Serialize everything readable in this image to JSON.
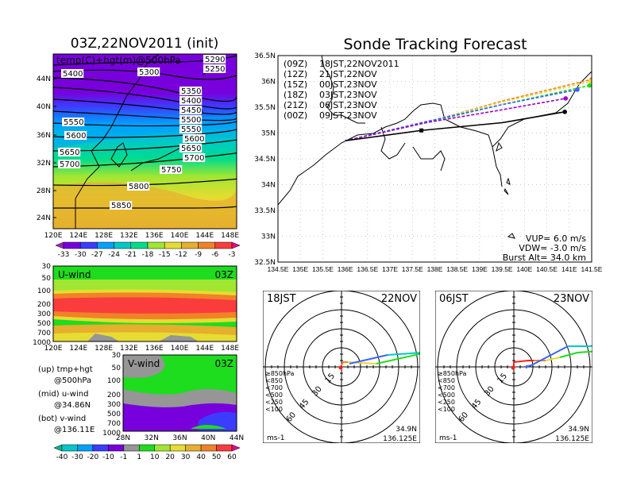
{
  "upper_map": {
    "title": "03Z,22NOV2011 (init)",
    "subtitle": "temp(C)+hgt(m)@500hPa",
    "lat_labels": [
      "44N",
      "40N",
      "36N",
      "32N",
      "28N",
      "24N"
    ],
    "lon_labels": [
      "120E",
      "124E",
      "128E",
      "132E",
      "136E",
      "140E",
      "144E",
      "148E"
    ],
    "contour_labels": [
      "5250",
      "5290",
      "5300",
      "5350",
      "5400",
      "5400",
      "5450",
      "5500",
      "5550",
      "5550",
      "5600",
      "5600",
      "5650",
      "5650",
      "5700",
      "5700",
      "5750",
      "5800",
      "5850"
    ],
    "colorbar_labels": [
      "-33",
      "-30",
      "-27",
      "-24",
      "-21",
      "-18",
      "-15",
      "-12",
      "-9",
      "-6",
      "-3"
    ],
    "colorbar_colors": [
      "#a020c8",
      "#7800dc",
      "#3c3cff",
      "#00a0ff",
      "#00c8c8",
      "#00dc8c",
      "#a0e632",
      "#e6dc32",
      "#e6af2d",
      "#f08228",
      "#fa3c3c",
      "#f00082"
    ]
  },
  "u_wind": {
    "title": "U-wind",
    "time": "03Z",
    "pressure_labels": [
      "30",
      "50",
      "100",
      "200",
      "300",
      "500",
      "700",
      "1000"
    ],
    "lon_labels": [
      "120E",
      "124E",
      "128E",
      "132E",
      "136E",
      "140E",
      "144E",
      "148E"
    ]
  },
  "v_wind": {
    "title": "V-wind",
    "time": "03Z",
    "pressure_labels": [
      "30",
      "50",
      "100",
      "200",
      "300",
      "500",
      "700",
      "1000"
    ],
    "lat_labels": [
      "28N",
      "32N",
      "36N",
      "40N",
      "44N"
    ],
    "colorbar_labels": [
      "-40",
      "-30",
      "-20",
      "-10",
      "-1",
      "1",
      "10",
      "20",
      "30",
      "40",
      "50",
      "60"
    ],
    "colorbar_colors": [
      "#00b48c",
      "#00c8c8",
      "#00a0ff",
      "#3c3cff",
      "#7800dc",
      "#969696",
      "#1edc1e",
      "#a0e632",
      "#e6dc32",
      "#e6af2d",
      "#f08228",
      "#fa3c3c",
      "#f00082"
    ]
  },
  "side_notes": [
    {
      "line1": "(up) tmp+hgt",
      "line2": "@500hPa"
    },
    {
      "line1": "(mid) u-wind",
      "line2": "@34.86N"
    },
    {
      "line1": "(bot) v-wind",
      "line2": "@136.11E"
    }
  ],
  "chart_data": {
    "type": "line",
    "title": "Sonde Tracking Forecast",
    "xlim": [
      134.5,
      141.5
    ],
    "ylim": [
      32.5,
      36.5
    ],
    "lat_labels": [
      "36.5N",
      "36N",
      "35.5N",
      "35N",
      "34.5N",
      "34N",
      "33.5N",
      "33N",
      "32.5N"
    ],
    "lon_labels": [
      "134.5E",
      "135E",
      "135.5E",
      "136E",
      "136.5E",
      "137E",
      "137.5E",
      "138E",
      "138.5E",
      "139E",
      "139.5E",
      "140E",
      "140.5E",
      "141E",
      "141.5E"
    ],
    "legend": [
      {
        "utc": "(09Z)",
        "jst": "18JST,22NOV2011",
        "color": "#000000"
      },
      {
        "utc": "(12Z)",
        "jst": "21JST,22NOV",
        "color": "#a000c8"
      },
      {
        "utc": "(15Z)",
        "jst": "00JST,23NOV",
        "color": "#3c64ff"
      },
      {
        "utc": "(18Z)",
        "jst": "03JST,23NOV",
        "color": "#1edc1e"
      },
      {
        "utc": "(21Z)",
        "jst": "06JST,23NOV",
        "color": "#e6dc32"
      },
      {
        "utc": "(00Z)",
        "jst": "09JST,23NOV",
        "color": "#f08228"
      }
    ],
    "series": [
      {
        "name": "09Z",
        "color": "#000000",
        "points": [
          [
            136.0,
            34.85
          ],
          [
            137.7,
            35.05
          ],
          [
            139.5,
            35.2
          ],
          [
            140.9,
            35.41
          ]
        ]
      },
      {
        "name": "12Z",
        "color": "#a000c8",
        "points": [
          [
            136.0,
            34.85
          ],
          [
            137.8,
            35.2
          ],
          [
            139.5,
            35.45
          ],
          [
            140.92,
            35.67
          ]
        ]
      },
      {
        "name": "15Z",
        "color": "#3c64ff",
        "points": [
          [
            136.0,
            34.85
          ],
          [
            137.8,
            35.22
          ],
          [
            139.5,
            35.55
          ],
          [
            141.18,
            35.84
          ]
        ]
      },
      {
        "name": "18Z",
        "color": "#1edc1e",
        "points": [
          [
            136.0,
            34.85
          ],
          [
            137.8,
            35.2
          ],
          [
            139.5,
            35.55
          ],
          [
            141.45,
            35.92
          ]
        ]
      },
      {
        "name": "21Z",
        "color": "#e6dc32",
        "points": [
          [
            136.0,
            34.85
          ],
          [
            137.8,
            35.2
          ],
          [
            139.5,
            35.6
          ],
          [
            141.48,
            36.0
          ]
        ]
      },
      {
        "name": "00Z",
        "color": "#f08228",
        "points": [
          [
            136.0,
            34.85
          ],
          [
            137.8,
            35.2
          ],
          [
            139.5,
            35.62
          ],
          [
            141.5,
            36.04
          ]
        ]
      }
    ],
    "info": {
      "vup": "VUP=  6.0  m/s",
      "vdw": "VDW=  -3.0  m/s",
      "burst": "Burst Alt=  34.0  km"
    }
  },
  "hodographs": [
    {
      "time": "18JST",
      "date": "22NOV",
      "lat": "34.9N",
      "lon": "136.125E",
      "unit": "ms-1"
    },
    {
      "time": "06JST",
      "date": "23NOV",
      "lat": "34.9N",
      "lon": "136.125E",
      "unit": "ms-1"
    }
  ],
  "hodo_rings": [
    "15",
    "30",
    "45",
    "60"
  ],
  "hodo_legend": [
    {
      "label": "≥850hPa",
      "color": "#fa1e1e"
    },
    {
      "label": "<850",
      "color": "#f08228"
    },
    {
      "label": "<700",
      "color": "#e6dc32"
    },
    {
      "label": "<500",
      "color": "#1edc1e"
    },
    {
      "label": "<250",
      "color": "#00c8c8"
    },
    {
      "label": "<100",
      "color": "#3c64ff"
    }
  ]
}
